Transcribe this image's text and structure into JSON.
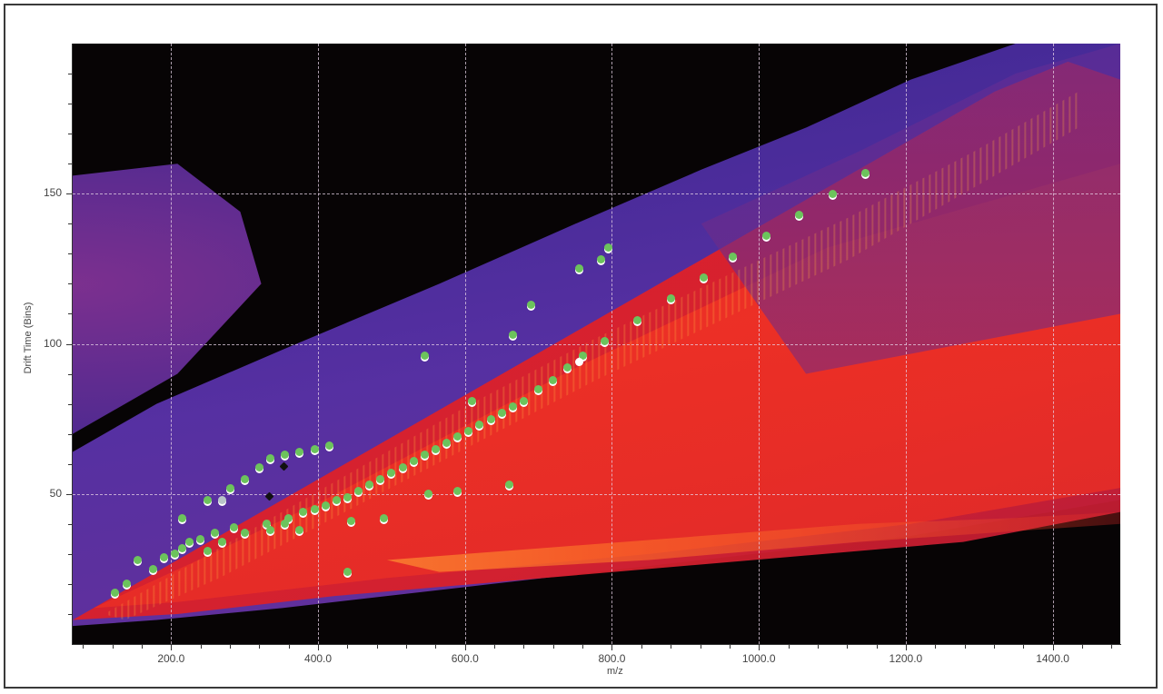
{
  "chart_data": {
    "type": "heatmap",
    "title": "",
    "xlabel": "m/z",
    "ylabel": "Drift Time (Bins)",
    "xlim": [
      66,
      1492
    ],
    "ylim": [
      0,
      200
    ],
    "grid": true,
    "x_ticks": [
      200,
      400,
      600,
      800,
      1000,
      1200,
      1400
    ],
    "x_tick_labels": [
      "200.0",
      "400.0",
      "600.0",
      "800.0",
      "1000.0",
      "1200.0",
      "1400.0"
    ],
    "y_ticks": [
      50,
      100,
      150
    ],
    "y_tick_labels": [
      "50",
      "100",
      "150"
    ],
    "colormap": [
      "#070405",
      "#4a2fa0",
      "#c5182c",
      "#f03224",
      "#ffb040",
      "#fff0a0"
    ],
    "overlay_points": {
      "description": "Identified ion markers (green circles) overlaid on the mobility heatmap",
      "colors": {
        "identified": "#6cc35c",
        "black": "#111111",
        "grey": "#b8c4c8",
        "white": "#ffffff"
      },
      "main_trend": [
        [
          123,
          17
        ],
        [
          140,
          20
        ],
        [
          175,
          25
        ],
        [
          190,
          29
        ],
        [
          215,
          32
        ],
        [
          240,
          35
        ],
        [
          260,
          37
        ],
        [
          285,
          39
        ],
        [
          330,
          40
        ],
        [
          360,
          42
        ],
        [
          380,
          44
        ],
        [
          395,
          45
        ],
        [
          410,
          46
        ],
        [
          425,
          48
        ],
        [
          440,
          49
        ],
        [
          455,
          51
        ],
        [
          470,
          53
        ],
        [
          485,
          55
        ],
        [
          500,
          57
        ],
        [
          515,
          59
        ],
        [
          530,
          61
        ],
        [
          545,
          63
        ],
        [
          560,
          65
        ],
        [
          575,
          67
        ],
        [
          590,
          69
        ],
        [
          605,
          71
        ],
        [
          620,
          73
        ],
        [
          635,
          75
        ],
        [
          650,
          77
        ],
        [
          665,
          79
        ],
        [
          680,
          81
        ],
        [
          700,
          85
        ],
        [
          720,
          88
        ],
        [
          740,
          92
        ],
        [
          760,
          96
        ],
        [
          790,
          101
        ],
        [
          835,
          108
        ],
        [
          880,
          115
        ],
        [
          925,
          122
        ],
        [
          965,
          129
        ],
        [
          1010,
          136
        ],
        [
          1055,
          143
        ],
        [
          1100,
          150
        ],
        [
          1145,
          157
        ]
      ],
      "upper_trend": [
        [
          215,
          42
        ],
        [
          250,
          48
        ],
        [
          280,
          52
        ],
        [
          300,
          55
        ],
        [
          320,
          59
        ],
        [
          335,
          62
        ],
        [
          355,
          63
        ],
        [
          375,
          64
        ],
        [
          395,
          65
        ],
        [
          415,
          66
        ],
        [
          610,
          81
        ],
        [
          665,
          103
        ],
        [
          690,
          113
        ],
        [
          755,
          125
        ],
        [
          785,
          128
        ],
        [
          795,
          132
        ]
      ],
      "lower_scattered": [
        [
          155,
          28
        ],
        [
          205,
          30
        ],
        [
          225,
          34
        ],
        [
          250,
          31
        ],
        [
          270,
          34
        ],
        [
          300,
          37
        ],
        [
          335,
          38
        ],
        [
          355,
          40
        ],
        [
          375,
          38
        ],
        [
          440,
          24
        ],
        [
          445,
          41
        ],
        [
          490,
          42
        ],
        [
          550,
          50
        ],
        [
          590,
          51
        ],
        [
          660,
          53
        ]
      ],
      "other_points": [
        {
          "x": 545,
          "y": 96,
          "kind": "identified"
        },
        {
          "x": 335,
          "y": 49,
          "kind": "black"
        },
        {
          "x": 355,
          "y": 59,
          "kind": "black"
        },
        {
          "x": 270,
          "y": 48,
          "kind": "grey"
        },
        {
          "x": 755,
          "y": 94,
          "kind": "white"
        }
      ]
    }
  }
}
